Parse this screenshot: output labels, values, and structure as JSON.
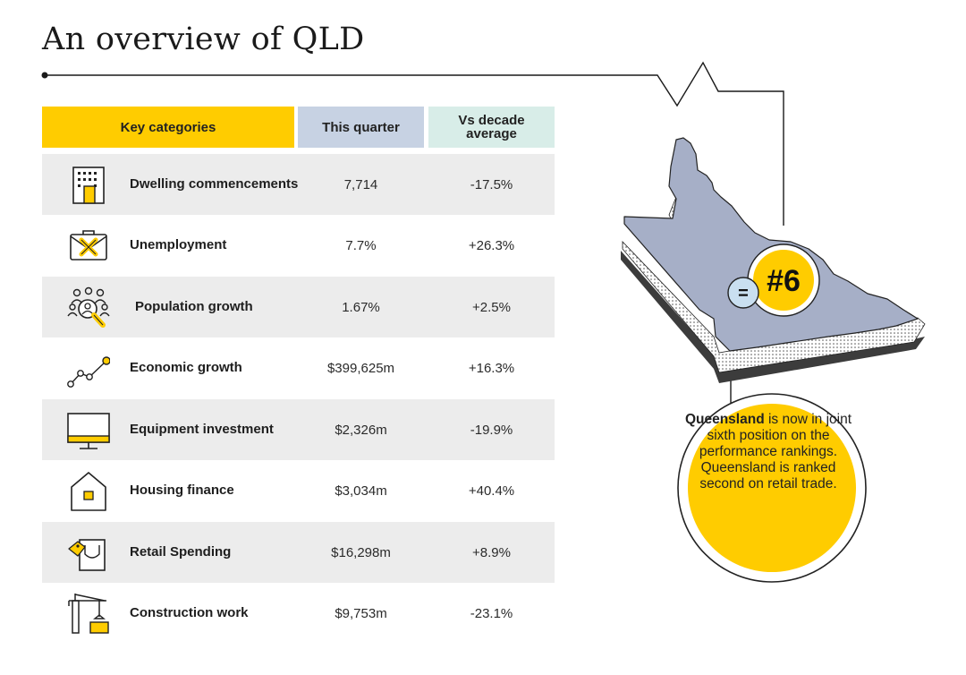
{
  "page": {
    "title": "An overview of QLD"
  },
  "table": {
    "headers": {
      "key_categories": "Key categories",
      "this_quarter": "This quarter",
      "vs_decade_average": "Vs decade\naverage"
    },
    "rows": [
      {
        "label": "Dwelling commencements",
        "value": "7,714",
        "change": "-17.5%",
        "icon": "building-icon"
      },
      {
        "label": "Unemployment",
        "value": "7.7%",
        "change": "+26.3%",
        "icon": "briefcase-x-icon"
      },
      {
        "label": "Population growth",
        "value": "1.67%",
        "change": "+2.5%",
        "icon": "people-magnifier-icon"
      },
      {
        "label": "Economic growth",
        "value": "$399,625m",
        "change": "+16.3%",
        "icon": "trend-line-icon"
      },
      {
        "label": "Equipment investment",
        "value": "$2,326m",
        "change": "-19.9%",
        "icon": "monitor-icon"
      },
      {
        "label": "Housing finance",
        "value": "$3,034m",
        "change": "+40.4%",
        "icon": "house-icon"
      },
      {
        "label": "Retail Spending",
        "value": "$16,298m",
        "change": "+8.9%",
        "icon": "shopping-bag-icon"
      },
      {
        "label": "Construction work",
        "value": "$9,753m",
        "change": "-23.1%",
        "icon": "crane-icon"
      }
    ]
  },
  "ranking": {
    "equal_sign": "=",
    "rank": "#6"
  },
  "callout": {
    "state": "Queensland",
    "text": " is now in joint sixth position on the performance rankings. Queensland is ranked second on retail trade."
  },
  "colors": {
    "accent_yellow": "#ffcc00",
    "this_quarter_header": "#c7d2e3",
    "decade_header": "#d8ede8",
    "map_fill": "#a6afc7",
    "row_shade": "#ececec"
  }
}
